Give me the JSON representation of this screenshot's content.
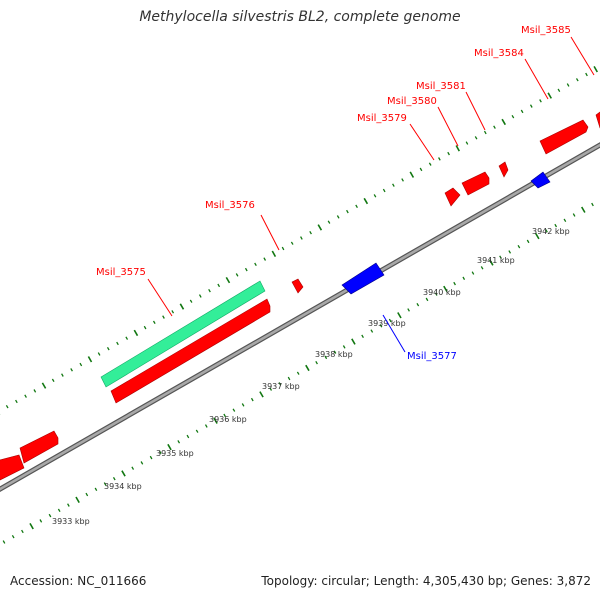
{
  "title": "Methylocella silvestris BL2, complete genome",
  "footer": {
    "accession": "Accession: NC_011666",
    "stats": "Topology: circular; Length: 4,305,430 bp; Genes: 3,872"
  },
  "colors": {
    "forward_gene": "#ff0000",
    "reverse_gene": "#0000ff",
    "rna_gene": "#33ee99",
    "tick": "#117711",
    "backbone": "#888888"
  },
  "scale_labels": [
    "3933 kbp",
    "3934 kbp",
    "3935 kbp",
    "3936 kbp",
    "3937 kbp",
    "3938 kbp",
    "3939 kbp",
    "3940 kbp",
    "3941 kbp",
    "3942 kbp"
  ],
  "gene_labels": [
    {
      "name": "Msil_3575",
      "strand": "forward"
    },
    {
      "name": "Msil_3576",
      "strand": "forward"
    },
    {
      "name": "Msil_3577",
      "strand": "reverse"
    },
    {
      "name": "Msil_3579",
      "strand": "forward"
    },
    {
      "name": "Msil_3580",
      "strand": "forward"
    },
    {
      "name": "Msil_3581",
      "strand": "forward"
    },
    {
      "name": "Msil_3584",
      "strand": "forward"
    },
    {
      "name": "Msil_3585",
      "strand": "forward"
    }
  ]
}
